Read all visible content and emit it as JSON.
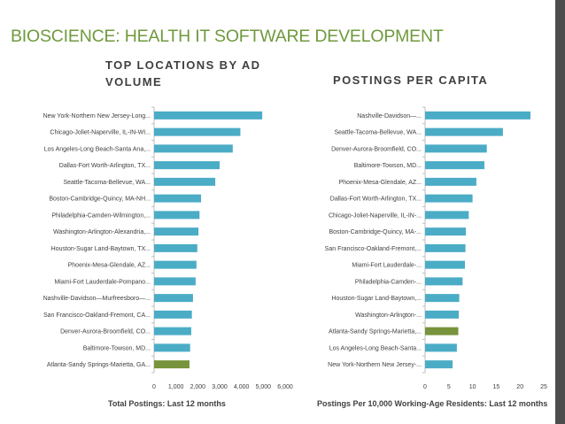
{
  "page": {
    "title": "BIOSCIENCE: HEALTH IT SOFTWARE DEVELOPMENT"
  },
  "colors": {
    "title": "#6f9a3c",
    "bar": "#4bacc6",
    "highlight": "#77933c",
    "side_bar": "#4d4d4d"
  },
  "chart_data": [
    {
      "type": "bar",
      "orientation": "horizontal",
      "title": "TOP LOCATIONS BY AD VOLUME",
      "xlabel": "Total Postings: Last 12 months",
      "xlim": [
        0,
        6000
      ],
      "xticks": [
        "0",
        "1,000",
        "2,000",
        "3,000",
        "4,000",
        "5,000",
        "6,000"
      ],
      "highlight": "Atlanta-Sandy Springs-Marietta, GA...",
      "categories": [
        "New York-Northern New Jersey-Long...",
        "Chicago-Joliet-Naperville, IL-IN-WI...",
        "Los Angeles-Long Beach-Santa Ana,...",
        "Dallas-Fort Worth-Arlington, TX...",
        "Seattle-Tacoma-Bellevue, WA...",
        "Boston-Cambridge-Quincy, MA-NH...",
        "Philadelphia-Camden-Wilmington,...",
        "Washington-Arlington-Alexandria,...",
        "Houston-Sugar Land-Baytown, TX...",
        "Phoenix-Mesa-Glendale, AZ...",
        "Miami-Fort Lauderdale-Pompano...",
        "Nashville-Davidson—Murfreesboro—...",
        "San Francisco-Oakland-Fremont, CA...",
        "Denver-Aurora-Broomfield, CO...",
        "Baltimore-Towson, MD...",
        "Atlanta-Sandy Springs-Marietta, GA..."
      ],
      "values": [
        4950,
        3950,
        3600,
        3000,
        2800,
        2150,
        2080,
        2030,
        1980,
        1940,
        1900,
        1780,
        1730,
        1700,
        1650,
        1620
      ]
    },
    {
      "type": "bar",
      "orientation": "horizontal",
      "title": "POSTINGS PER CAPITA",
      "xlabel": "Postings Per 10,000 Working-Age Residents: Last 12 months",
      "xlim": [
        0,
        25
      ],
      "xticks": [
        "0",
        "5",
        "10",
        "15",
        "20",
        "25"
      ],
      "highlight": "Atlanta-Sandy Springs-Marietta,...",
      "categories": [
        "Nashville-Davidson—...",
        "Seattle-Tacoma-Bellevue, WA...",
        "Denver-Aurora-Broomfield, CO...",
        "Baltimore-Towson, MD...",
        "Phoenix-Mesa-Glendale, AZ...",
        "Dallas-Fort Worth-Arlington, TX...",
        "Chicago-Joliet-Naperville, IL-IN-...",
        "Boston-Cambridge-Quincy, MA-...",
        "San Francisco-Oakland-Fremont,...",
        "Miami-Fort Lauderdale-...",
        "Philadelphia-Camden-...",
        "Houston-Sugar Land-Baytown,...",
        "Washington-Arlington-...",
        "Atlanta-Sandy Springs-Marietta,...",
        "Los Angeles-Long Beach-Santa...",
        "New York-Northern New Jersey-..."
      ],
      "values": [
        22.2,
        16.4,
        13.0,
        12.5,
        10.8,
        10.0,
        9.2,
        8.6,
        8.5,
        8.4,
        7.9,
        7.2,
        7.1,
        7.0,
        6.7,
        5.8
      ]
    }
  ]
}
